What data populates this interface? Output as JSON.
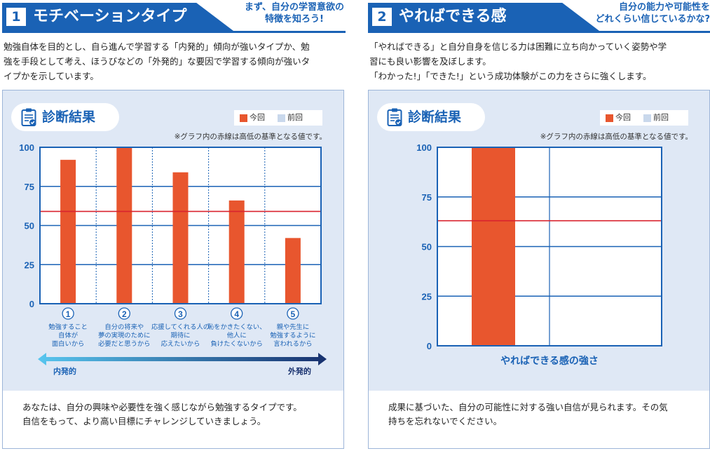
{
  "section1": {
    "number": "1",
    "title": "モチベーションタイプ",
    "subtitle": [
      "まず、自分の学習意欲の",
      "特徴を知ろう!"
    ],
    "intro": [
      "勉強自体を目的とし、自ら進んで学習する「内発的」傾向が強いタイプか、勉",
      "強を手段として考え、ほうびなどの「外発的」な要因で学習する傾向が強いタ",
      "イプかを示しています。"
    ],
    "badge": "診断結果",
    "legend": {
      "current": "今回",
      "previous": "前回"
    },
    "note": "※グラフ内の赤線は高低の基準となる値です。",
    "arrow": {
      "left": "内発的",
      "right": "外発的"
    },
    "comment": [
      "あなたは、自分の興味や必要性を強く感じながら勉強するタイプです。",
      "自信をもって、より高い目標にチャレンジしていきましょう。"
    ]
  },
  "section2": {
    "number": "2",
    "title": "やればできる感",
    "subtitle": [
      "自分の能力や可能性を",
      "どれくらい信じているかな?"
    ],
    "intro": [
      "「やればできる」と自分自身を信じる力は困難に立ち向かっていく姿勢や学",
      "習にも良い影響を及ぼします。",
      "「わかった!」「できた!」という成功体験がこの力をさらに強くします。"
    ],
    "badge": "診断結果",
    "legend": {
      "current": "今回",
      "previous": "前回"
    },
    "note": "※グラフ内の赤線は高低の基準となる値です。",
    "comment": [
      "成果に基づいた、自分の可能性に対する強い自信が見られます。その気",
      "持ちを忘れないでください。"
    ]
  },
  "colors": {
    "accent": "#1a62b5",
    "bar_current": "#e8562e",
    "bar_previous": "#c9d8ec",
    "threshold": "#d9232e"
  },
  "chart_data": [
    {
      "type": "bar",
      "title": "モチベーションタイプ 診断結果",
      "categories": [
        "①",
        "②",
        "③",
        "④",
        "⑤"
      ],
      "category_labels": [
        [
          "勉強すること",
          "自体が",
          "面白いから"
        ],
        [
          "自分の将来や",
          "夢の実現のために",
          "必要だと思うから"
        ],
        [
          "応援してくれる人の",
          "期待に",
          "応えたいから"
        ],
        [
          "恥をかきたくない、",
          "他人に",
          "負けたくないから"
        ],
        [
          "親や先生に",
          "勉強するように",
          "言われるから"
        ]
      ],
      "series": [
        {
          "name": "今回",
          "values": [
            92,
            100,
            84,
            66,
            42
          ]
        }
      ],
      "threshold": 59,
      "yticks": [
        0,
        25,
        50,
        75,
        100
      ],
      "ylim": [
        0,
        100
      ],
      "legend": [
        "今回",
        "前回"
      ]
    },
    {
      "type": "bar",
      "title": "やればできる感 診断結果",
      "categories": [
        "やればできる感の強さ"
      ],
      "series": [
        {
          "name": "今回",
          "values": [
            100
          ]
        }
      ],
      "threshold": 63,
      "yticks": [
        0,
        25,
        50,
        75,
        100
      ],
      "ylim": [
        0,
        100
      ],
      "legend": [
        "今回",
        "前回"
      ]
    }
  ]
}
